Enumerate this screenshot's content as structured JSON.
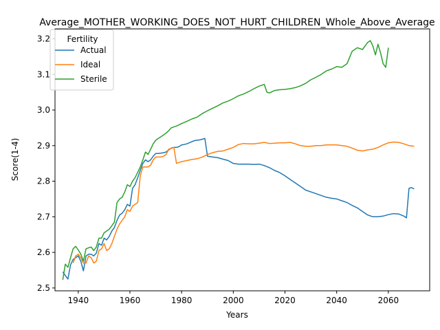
{
  "chart_data": {
    "type": "line",
    "title": "Average_MOTHER_WORKING_DOES_NOT_HURT_CHILDREN_Whole_Above_Average",
    "xlabel": "Years",
    "ylabel": "Score(1-4)",
    "xlim": [
      1931,
      2076
    ],
    "ylim": [
      2.492,
      3.228
    ],
    "xticks": [
      1940,
      1960,
      1980,
      2000,
      2020,
      2040,
      2060
    ],
    "yticks": [
      2.5,
      2.6,
      2.7,
      2.8,
      2.9,
      3.0,
      3.1,
      3.2
    ],
    "legend": {
      "title": "Fertility",
      "placement": "upper-left"
    },
    "grid": false,
    "series": [
      {
        "name": "Actual",
        "color": "#1f77b4",
        "x": [
          1934,
          1935,
          1936,
          1937,
          1938,
          1939,
          1940,
          1941,
          1942,
          1943,
          1944,
          1945,
          1946,
          1947,
          1948,
          1949,
          1950,
          1951,
          1952,
          1953,
          1954,
          1955,
          1956,
          1957,
          1958,
          1959,
          1960,
          1961,
          1962,
          1963,
          1964,
          1965,
          1966,
          1967,
          1968,
          1969,
          1970,
          1971,
          1972,
          1973,
          1974,
          1975,
          1976,
          1977,
          1978,
          1979,
          1980,
          1981,
          1982,
          1983,
          1984,
          1985,
          1986,
          1987,
          1988,
          1989,
          1990,
          1992,
          1994,
          1996,
          1998,
          2000,
          2002,
          2004,
          2006,
          2008,
          2010,
          2012,
          2014,
          2016,
          2018,
          2020,
          2022,
          2024,
          2026,
          2028,
          2030,
          2032,
          2034,
          2036,
          2038,
          2040,
          2042,
          2044,
          2046,
          2048,
          2050,
          2052,
          2054,
          2056,
          2058,
          2060,
          2062,
          2064,
          2066,
          2067,
          2068,
          2069,
          2070
        ],
        "values": [
          2.545,
          2.535,
          2.525,
          2.565,
          2.58,
          2.585,
          2.59,
          2.575,
          2.548,
          2.59,
          2.595,
          2.595,
          2.59,
          2.598,
          2.625,
          2.62,
          2.64,
          2.635,
          2.645,
          2.66,
          2.67,
          2.69,
          2.705,
          2.71,
          2.72,
          2.735,
          2.73,
          2.78,
          2.79,
          2.81,
          2.83,
          2.85,
          2.86,
          2.855,
          2.86,
          2.87,
          2.878,
          2.878,
          2.879,
          2.88,
          2.882,
          2.888,
          2.893,
          2.895,
          2.895,
          2.897,
          2.902,
          2.903,
          2.905,
          2.908,
          2.911,
          2.914,
          2.915,
          2.916,
          2.918,
          2.92,
          2.87,
          2.868,
          2.866,
          2.862,
          2.858,
          2.85,
          2.848,
          2.848,
          2.848,
          2.847,
          2.848,
          2.844,
          2.838,
          2.83,
          2.824,
          2.815,
          2.805,
          2.795,
          2.785,
          2.775,
          2.77,
          2.765,
          2.76,
          2.755,
          2.752,
          2.75,
          2.745,
          2.74,
          2.732,
          2.725,
          2.715,
          2.705,
          2.7,
          2.7,
          2.702,
          2.706,
          2.709,
          2.708,
          2.702,
          2.697,
          2.78,
          2.782,
          2.778
        ]
      },
      {
        "name": "Ideal",
        "color": "#ff7f0e",
        "x": [
          1938,
          1939,
          1940,
          1941,
          1942,
          1943,
          1944,
          1945,
          1946,
          1947,
          1948,
          1949,
          1950,
          1951,
          1952,
          1953,
          1954,
          1955,
          1956,
          1957,
          1958,
          1959,
          1960,
          1961,
          1962,
          1963,
          1964,
          1965,
          1966,
          1967,
          1968,
          1969,
          1970,
          1971,
          1972,
          1973,
          1974,
          1975,
          1976,
          1977,
          1978,
          1980,
          1982,
          1984,
          1986,
          1988,
          1990,
          1992,
          1994,
          1996,
          1998,
          2000,
          2002,
          2004,
          2006,
          2008,
          2010,
          2012,
          2014,
          2016,
          2018,
          2020,
          2022,
          2024,
          2026,
          2028,
          2030,
          2032,
          2034,
          2036,
          2038,
          2040,
          2042,
          2044,
          2046,
          2048,
          2050,
          2052,
          2054,
          2056,
          2058,
          2060,
          2062,
          2064,
          2066,
          2068,
          2070
        ],
        "values": [
          2.57,
          2.59,
          2.595,
          2.585,
          2.57,
          2.57,
          2.59,
          2.585,
          2.57,
          2.575,
          2.605,
          2.61,
          2.625,
          2.605,
          2.61,
          2.625,
          2.645,
          2.665,
          2.68,
          2.69,
          2.7,
          2.72,
          2.715,
          2.73,
          2.735,
          2.74,
          2.815,
          2.84,
          2.84,
          2.84,
          2.845,
          2.86,
          2.868,
          2.868,
          2.868,
          2.87,
          2.875,
          2.89,
          2.892,
          2.895,
          2.85,
          2.855,
          2.858,
          2.861,
          2.863,
          2.868,
          2.875,
          2.88,
          2.884,
          2.885,
          2.89,
          2.895,
          2.903,
          2.906,
          2.905,
          2.905,
          2.907,
          2.909,
          2.906,
          2.907,
          2.908,
          2.908,
          2.909,
          2.905,
          2.9,
          2.898,
          2.898,
          2.9,
          2.9,
          2.902,
          2.902,
          2.902,
          2.9,
          2.898,
          2.893,
          2.887,
          2.885,
          2.888,
          2.89,
          2.895,
          2.902,
          2.908,
          2.91,
          2.909,
          2.905,
          2.9,
          2.898
        ]
      },
      {
        "name": "Sterile",
        "color": "#2ca02c",
        "x": [
          1934,
          1935,
          1936,
          1937,
          1938,
          1939,
          1940,
          1941,
          1942,
          1943,
          1944,
          1945,
          1946,
          1947,
          1948,
          1949,
          1950,
          1951,
          1952,
          1953,
          1954,
          1955,
          1956,
          1957,
          1958,
          1959,
          1960,
          1961,
          1962,
          1963,
          1964,
          1965,
          1966,
          1967,
          1968,
          1969,
          1970,
          1971,
          1972,
          1973,
          1974,
          1975,
          1976,
          1978,
          1980,
          1982,
          1984,
          1986,
          1988,
          1990,
          1992,
          1994,
          1996,
          1998,
          2000,
          2002,
          2004,
          2006,
          2008,
          2010,
          2012,
          2013,
          2014,
          2016,
          2018,
          2020,
          2022,
          2024,
          2026,
          2028,
          2030,
          2032,
          2034,
          2036,
          2038,
          2040,
          2042,
          2044,
          2046,
          2048,
          2050,
          2052,
          2053,
          2054,
          2055,
          2056,
          2057,
          2058,
          2059,
          2060
        ],
        "values": [
          2.523,
          2.567,
          2.558,
          2.585,
          2.61,
          2.617,
          2.607,
          2.595,
          2.575,
          2.61,
          2.613,
          2.615,
          2.605,
          2.615,
          2.64,
          2.64,
          2.655,
          2.66,
          2.665,
          2.675,
          2.685,
          2.74,
          2.75,
          2.755,
          2.77,
          2.79,
          2.785,
          2.8,
          2.81,
          2.825,
          2.84,
          2.86,
          2.882,
          2.875,
          2.89,
          2.905,
          2.915,
          2.92,
          2.925,
          2.93,
          2.935,
          2.942,
          2.95,
          2.955,
          2.962,
          2.968,
          2.975,
          2.98,
          2.99,
          2.998,
          3.005,
          3.012,
          3.02,
          3.025,
          3.032,
          3.04,
          3.045,
          3.052,
          3.06,
          3.067,
          3.072,
          3.05,
          3.048,
          3.055,
          3.057,
          3.058,
          3.06,
          3.063,
          3.068,
          3.075,
          3.085,
          3.092,
          3.1,
          3.11,
          3.115,
          3.122,
          3.12,
          3.13,
          3.165,
          3.175,
          3.17,
          3.19,
          3.195,
          3.18,
          3.155,
          3.185,
          3.16,
          3.13,
          3.12,
          3.175
        ]
      }
    ]
  }
}
